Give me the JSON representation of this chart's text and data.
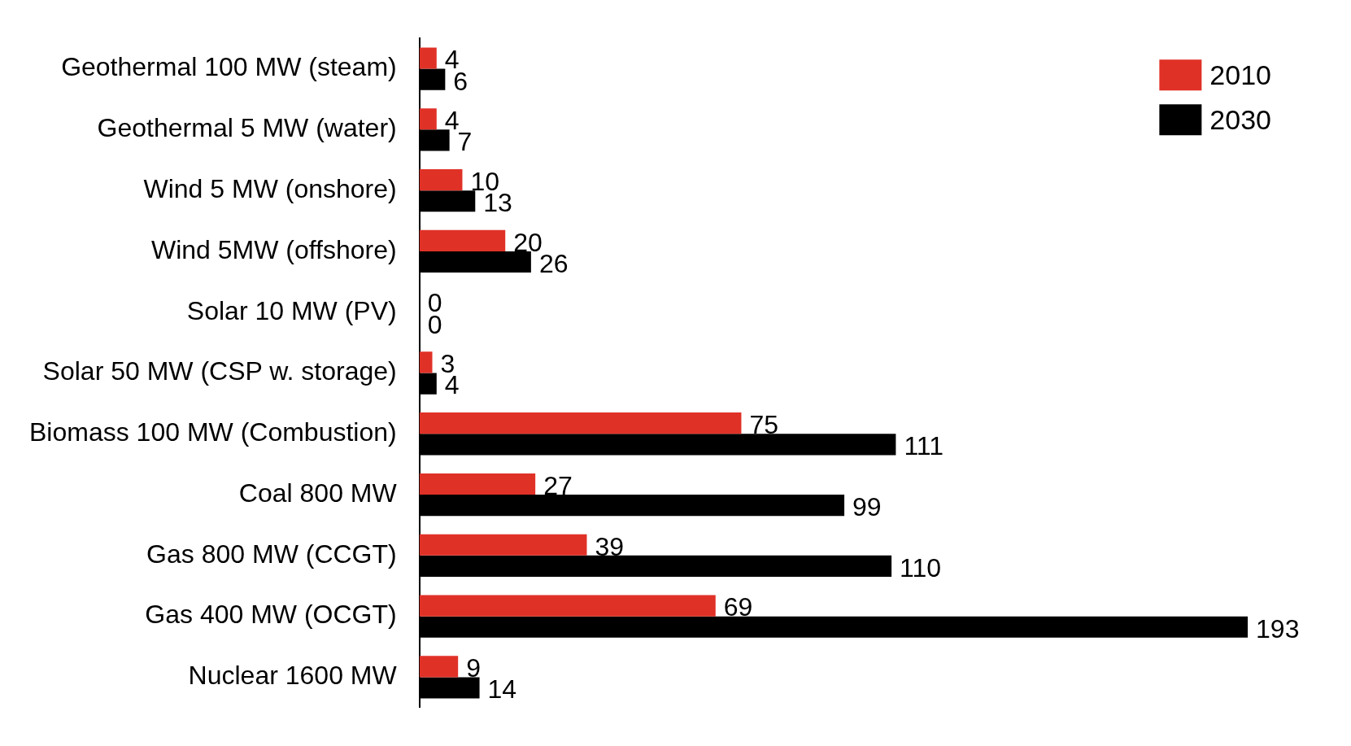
{
  "chart_data": {
    "type": "bar",
    "orientation": "horizontal",
    "categories": [
      "Geothermal 100 MW (steam)",
      "Geothermal 5 MW (water)",
      "Wind 5 MW (onshore)",
      "Wind 5MW (offshore)",
      "Solar 10 MW (PV)",
      "Solar 50 MW (CSP w. storage)",
      "Biomass 100 MW (Combustion)",
      "Coal 800 MW",
      "Gas 800 MW (CCGT)",
      "Gas 400 MW (OCGT)",
      "Nuclear 1600 MW"
    ],
    "series": [
      {
        "name": "2010",
        "color": "#e03127",
        "values": [
          4,
          4,
          10,
          20,
          0,
          3,
          75,
          27,
          39,
          69,
          9
        ]
      },
      {
        "name": "2030",
        "color": "#000000",
        "values": [
          6,
          7,
          13,
          26,
          0,
          4,
          111,
          99,
          110,
          193,
          14
        ]
      }
    ],
    "tick_labels": "y",
    "data_labels": true,
    "legend": "top right",
    "grid": false
  }
}
